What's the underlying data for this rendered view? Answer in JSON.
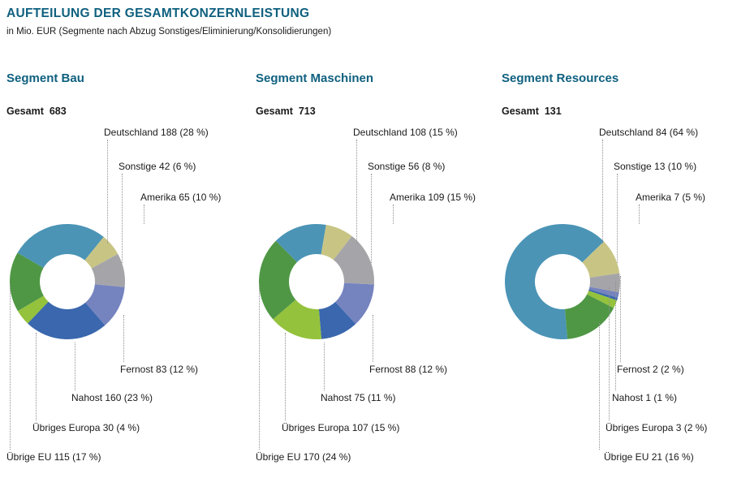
{
  "page": {
    "title": "AUFTEILUNG DER GESAMTKONZERNLEISTUNG",
    "subtitle": "in Mio. EUR (Segmente nach Abzug Sonstiges/Eliminierung/Konsolidierungen)"
  },
  "colors": {
    "deutschland": "#4b94b6",
    "sonstige": "#c8c584",
    "amerika": "#a5a5a9",
    "fernost": "#7583bf",
    "nahost": "#3a67ad",
    "uebriges-europa": "#94c23c",
    "uebrige-eu": "#4f9745",
    "heading": "#0f607f"
  },
  "chart_data": [
    {
      "type": "pie",
      "variant": "donut",
      "title": "Segment Bau",
      "total_label": "Gesamt",
      "total": "683",
      "unit": "Mio. EUR",
      "start_angle": -60,
      "legend_position": "callout-labels",
      "segments": [
        {
          "key": "deutschland",
          "label": "Deutschland",
          "value": 188,
          "pct": 28,
          "text": "Deutschland 188 (28 %)"
        },
        {
          "key": "sonstige",
          "label": "Sonstige",
          "value": 42,
          "pct": 6,
          "text": "Sonstige 42 (6 %)"
        },
        {
          "key": "amerika",
          "label": "Amerika",
          "value": 65,
          "pct": 10,
          "text": "Amerika 65 (10 %)"
        },
        {
          "key": "fernost",
          "label": "Fernost",
          "value": 83,
          "pct": 12,
          "text": "Fernost 83 (12 %)"
        },
        {
          "key": "nahost",
          "label": "Nahost",
          "value": 160,
          "pct": 23,
          "text": "Nahost 160 (23 %)"
        },
        {
          "key": "uebriges-europa",
          "label": "Übriges Europa",
          "value": 30,
          "pct": 4,
          "text": "Übriges Europa 30 (4 %)"
        },
        {
          "key": "uebrige-eu",
          "label": "Übrige EU",
          "value": 115,
          "pct": 17,
          "text": "Übrige EU 115 (17 %)"
        }
      ]
    },
    {
      "type": "pie",
      "variant": "donut",
      "title": "Segment Maschinen",
      "total_label": "Gesamt",
      "total": "713",
      "unit": "Mio. EUR",
      "start_angle": -45,
      "legend_position": "callout-labels",
      "segments": [
        {
          "key": "deutschland",
          "label": "Deutschland",
          "value": 108,
          "pct": 15,
          "text": "Deutschland 108 (15 %)"
        },
        {
          "key": "sonstige",
          "label": "Sonstige",
          "value": 56,
          "pct": 8,
          "text": "Sonstige 56 (8 %)"
        },
        {
          "key": "amerika",
          "label": "Amerika",
          "value": 109,
          "pct": 15,
          "text": "Amerika 109 (15 %)"
        },
        {
          "key": "fernost",
          "label": "Fernost",
          "value": 88,
          "pct": 12,
          "text": "Fernost 88 (12 %)"
        },
        {
          "key": "nahost",
          "label": "Nahost",
          "value": 75,
          "pct": 11,
          "text": "Nahost 75 (11 %)"
        },
        {
          "key": "uebriges-europa",
          "label": "Übriges Europa",
          "value": 107,
          "pct": 15,
          "text": "Übriges Europa 107 (15 %)"
        },
        {
          "key": "uebrige-eu",
          "label": "Übrige EU",
          "value": 170,
          "pct": 24,
          "text": "Übrige EU 170 (24 %)"
        }
      ]
    },
    {
      "type": "pie",
      "variant": "donut",
      "title": "Segment Resources",
      "total_label": "Gesamt",
      "total": "131",
      "unit": "Mio. EUR",
      "start_angle": 175,
      "legend_position": "callout-labels",
      "segments": [
        {
          "key": "deutschland",
          "label": "Deutschland",
          "value": 84,
          "pct": 64,
          "text": "Deutschland 84 (64 %)"
        },
        {
          "key": "sonstige",
          "label": "Sonstige",
          "value": 13,
          "pct": 10,
          "text": "Sonstige 13 (10 %)"
        },
        {
          "key": "amerika",
          "label": "Amerika",
          "value": 7,
          "pct": 5,
          "text": "Amerika 7 (5 %)"
        },
        {
          "key": "fernost",
          "label": "Fernost",
          "value": 2,
          "pct": 2,
          "text": "Fernost 2 (2 %)"
        },
        {
          "key": "nahost",
          "label": "Nahost",
          "value": 1,
          "pct": 1,
          "text": "Nahost 1 (1 %)"
        },
        {
          "key": "uebriges-europa",
          "label": "Übriges Europa",
          "value": 3,
          "pct": 2,
          "text": "Übriges Europa 3 (2 %)"
        },
        {
          "key": "uebrige-eu",
          "label": "Übrige EU",
          "value": 21,
          "pct": 16,
          "text": "Übrige EU 21 (16 %)"
        }
      ]
    }
  ]
}
